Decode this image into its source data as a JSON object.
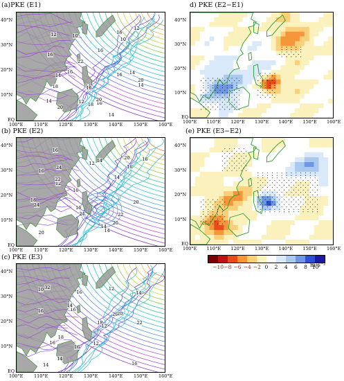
{
  "panels": {
    "a": {
      "title": "(a)PKE (E1)"
    },
    "b": {
      "title": "(b) PKE (E2)"
    },
    "c": {
      "title": "(c) PKE (E3)"
    },
    "d": {
      "title": "d) PKE (E2−E1)"
    },
    "e": {
      "title": "(e) PKE (E3−E2)"
    }
  },
  "axes": {
    "lat_ticks": [
      "40°N",
      "30°N",
      "20°N",
      "10°N",
      "EQ"
    ],
    "lon_ticks": [
      "100°E",
      "110°E",
      "120°E",
      "130°E",
      "140°E",
      "150°E",
      "160°E"
    ]
  },
  "colorbar": {
    "labels": [
      "−10",
      "−8",
      "−6",
      "−4",
      "−2",
      "0",
      "2",
      "4",
      "6",
      "8",
      "10"
    ],
    "unit": "m²s⁻²",
    "colors": [
      "#7a0000",
      "#c01010",
      "#e84a1a",
      "#f5963a",
      "#f9cf7a",
      "#fbf1bd",
      "#ffffff",
      "#d9e9f9",
      "#a9c9ef",
      "#6e96e3",
      "#2d4fd4",
      "#1d1aa0"
    ]
  },
  "contour_labels": {
    "a": [
      "16",
      "10",
      "12",
      "14",
      "10",
      "20",
      "18",
      "16",
      "14",
      "16",
      "14",
      "16",
      "12",
      "20",
      "14",
      "10",
      "14",
      "18",
      "16",
      "22",
      "20",
      "12",
      "16",
      "14",
      "16"
    ],
    "b": [
      "16",
      "22",
      "24",
      "20",
      "24",
      "20",
      "18",
      "16",
      "14",
      "16",
      "14",
      "16",
      "12",
      "24",
      "20",
      "20",
      "22",
      "16",
      "12",
      "14",
      "16",
      "14"
    ],
    "c": [
      "16",
      "10",
      "14",
      "20",
      "18",
      "16",
      "22",
      "20",
      "32",
      "16",
      "14",
      "12",
      "14",
      "16",
      "16",
      "16",
      "12",
      "18",
      "14",
      "12"
    ]
  }
}
